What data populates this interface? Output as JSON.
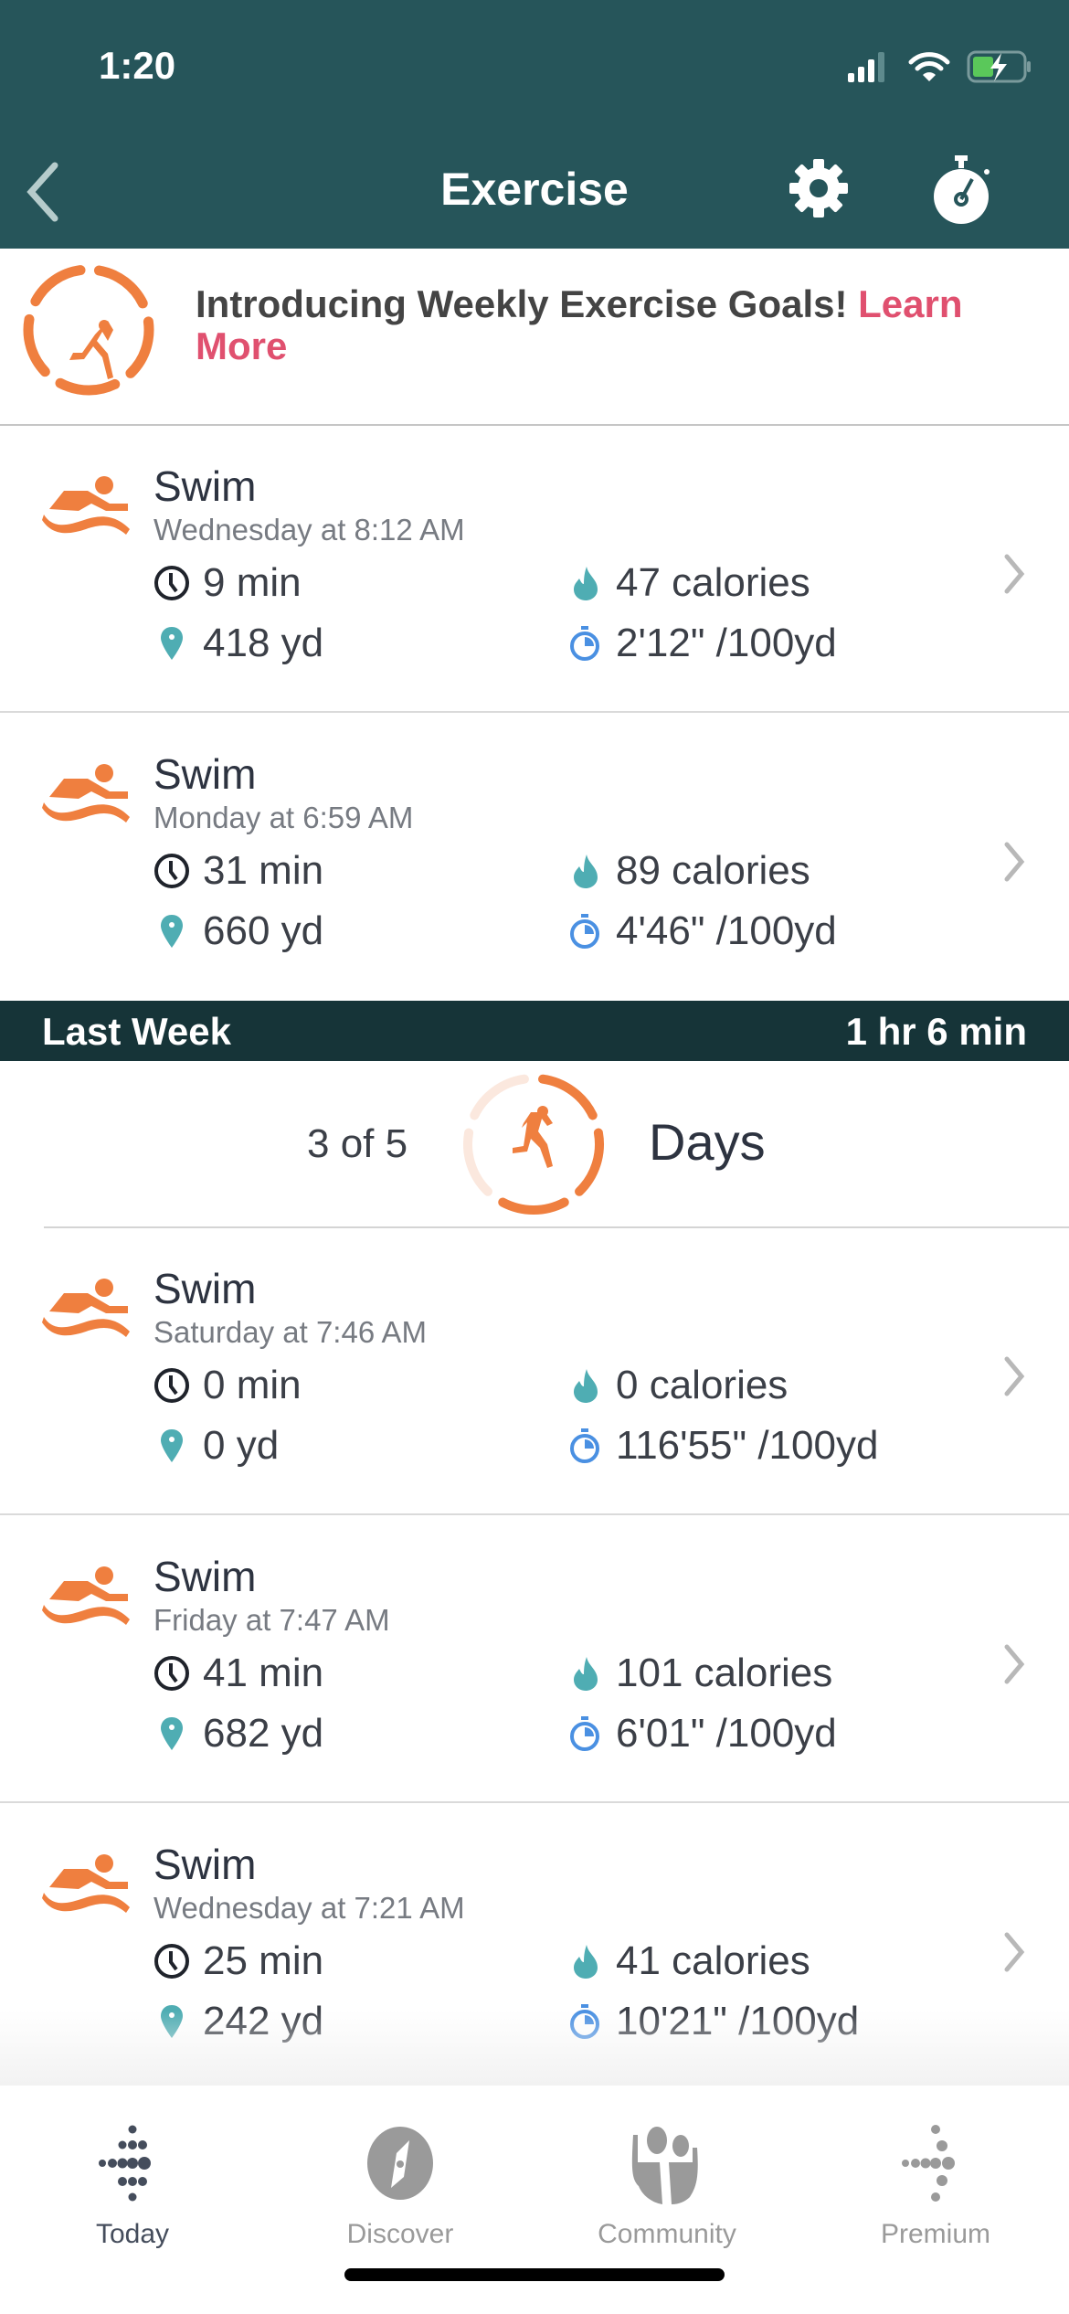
{
  "status_bar": {
    "time": "1:20",
    "battery_charging": true
  },
  "header": {
    "title": "Exercise",
    "back_icon": "chevron-left-icon",
    "settings_icon": "gear-icon",
    "timer_icon": "stopwatch-icon"
  },
  "banner": {
    "text": "Introducing Weekly Exercise Goals! ",
    "link": "Learn More",
    "icon": "running-goal-icon"
  },
  "colors": {
    "header": "#26555a",
    "week_bar": "#163438",
    "accent": "#ef7f3f",
    "link": "#e0506f",
    "teal": "#4fadb3",
    "blue": "#4a90e2"
  },
  "this_week": [
    {
      "title": "Swim",
      "when": "Wednesday at 8:12 AM",
      "duration": "9 min",
      "distance": "418 yd",
      "calories": "47 calories",
      "pace": "2'12\" /100yd"
    },
    {
      "title": "Swim",
      "when": "Monday at 6:59 AM",
      "duration": "31 min",
      "distance": "660 yd",
      "calories": "89 calories",
      "pace": "4'46\" /100yd"
    }
  ],
  "last_week": {
    "label": "Last Week",
    "total": "1 hr 6 min",
    "goal": {
      "count": "3 of 5",
      "unit": "Days",
      "achieved": 3,
      "target": 5
    },
    "items": [
      {
        "title": "Swim",
        "when": "Saturday at 7:46 AM",
        "duration": "0 min",
        "distance": "0 yd",
        "calories": "0 calories",
        "pace": "116'55\" /100yd"
      },
      {
        "title": "Swim",
        "when": "Friday at 7:47 AM",
        "duration": "41 min",
        "distance": "682 yd",
        "calories": "101 calories",
        "pace": "6'01\" /100yd"
      },
      {
        "title": "Swim",
        "when": "Wednesday at 7:21 AM",
        "duration": "25 min",
        "distance": "242 yd",
        "calories": "41 calories",
        "pace": "10'21\" /100yd"
      }
    ]
  },
  "tabs": [
    {
      "label": "Today",
      "icon": "fitbit-dots-icon",
      "active": true
    },
    {
      "label": "Discover",
      "icon": "compass-icon",
      "active": false
    },
    {
      "label": "Community",
      "icon": "community-icon",
      "active": false
    },
    {
      "label": "Premium",
      "icon": "premium-dots-icon",
      "active": false
    }
  ]
}
